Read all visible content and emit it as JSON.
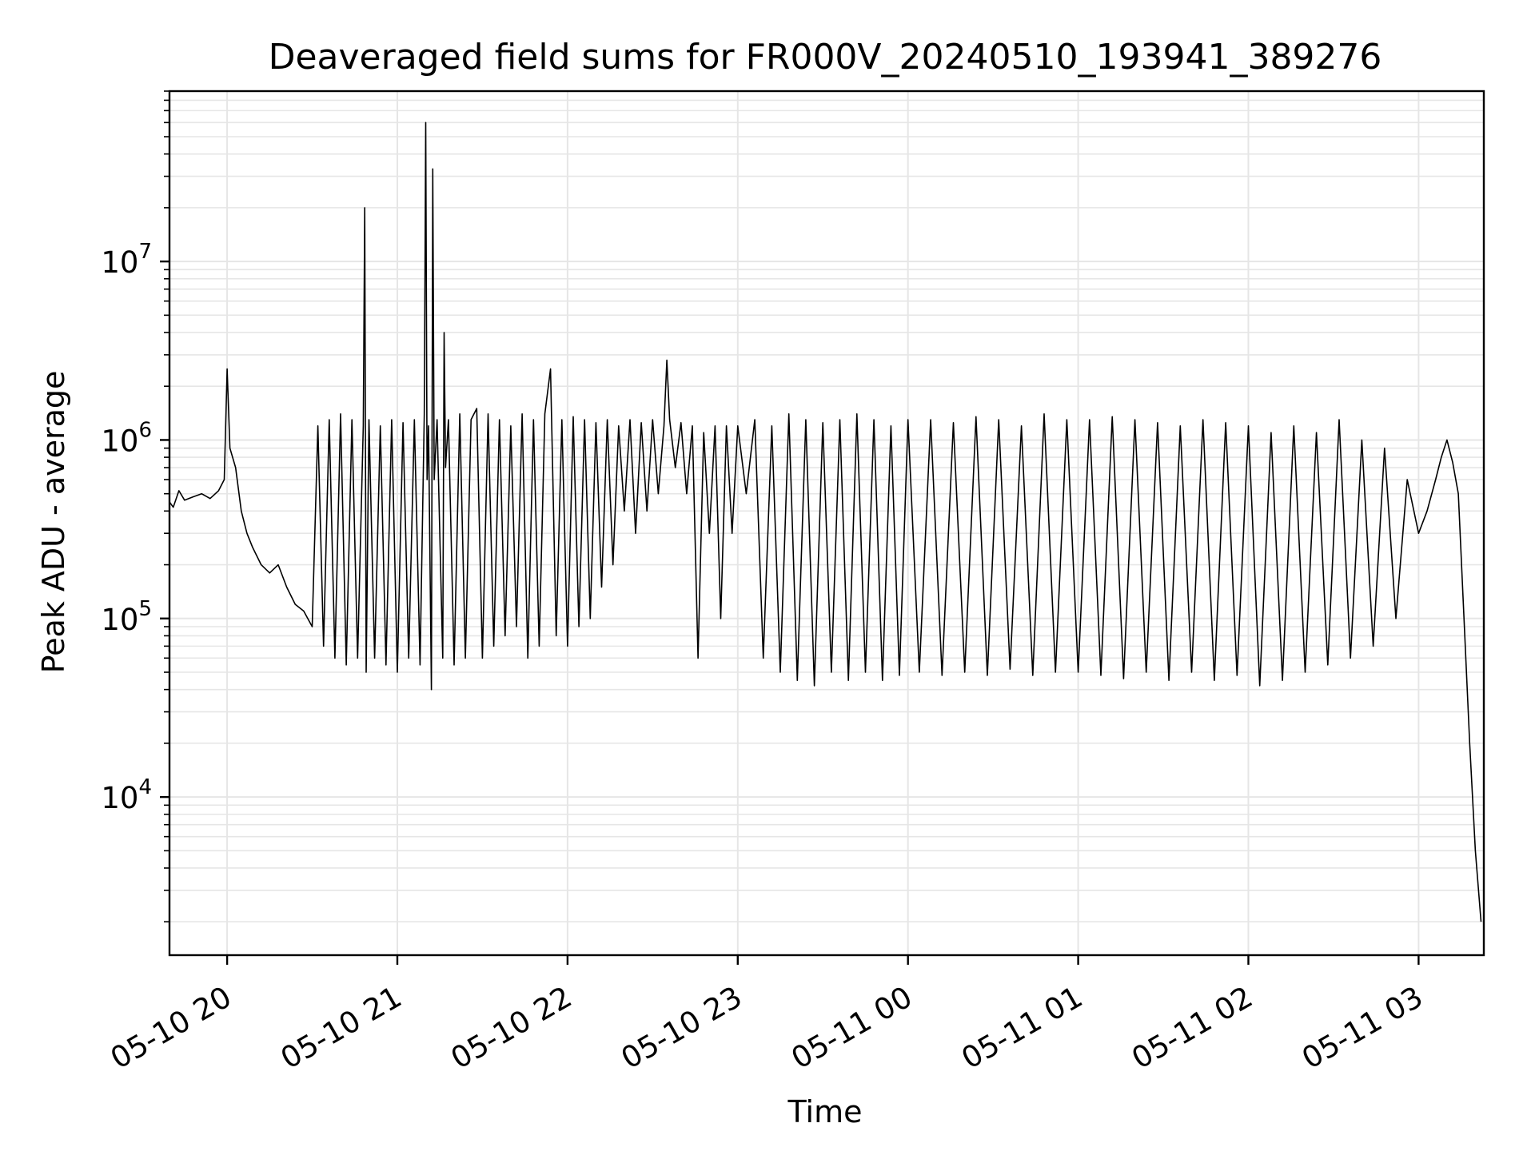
{
  "chart_data": {
    "type": "line",
    "title": "Deaveraged field sums for FR000V_20240510_193941_389276",
    "xlabel": "Time",
    "ylabel": "Peak ADU - average",
    "y_scale": "log",
    "xlim": [
      "2024-05-10 19:39:41",
      "2024-05-11 03:23:00"
    ],
    "ylim": [
      1300,
      90000000
    ],
    "grid": true,
    "x_ticks": [
      {
        "t": "2024-05-10 20:00",
        "label": "05-10 20"
      },
      {
        "t": "2024-05-10 21:00",
        "label": "05-10 21"
      },
      {
        "t": "2024-05-10 22:00",
        "label": "05-10 22"
      },
      {
        "t": "2024-05-10 23:00",
        "label": "05-10 23"
      },
      {
        "t": "2024-05-11 00:00",
        "label": "05-11 00"
      },
      {
        "t": "2024-05-11 01:00",
        "label": "05-11 01"
      },
      {
        "t": "2024-05-11 02:00",
        "label": "05-11 02"
      },
      {
        "t": "2024-05-11 03:00",
        "label": "05-11 03"
      }
    ],
    "y_ticks": [
      {
        "value": 10000,
        "base": "10",
        "exp": "4"
      },
      {
        "value": 100000,
        "base": "10",
        "exp": "5"
      },
      {
        "value": 1000000,
        "base": "10",
        "exp": "6"
      },
      {
        "value": 10000000,
        "base": "10",
        "exp": "7"
      }
    ],
    "line_color": "#000000",
    "grid_color": "#e6e6e6",
    "series": [
      {
        "x": [
          "2024-05-10 19:39:41",
          "2024-05-10 19:41:00",
          "2024-05-10 19:43:00",
          "2024-05-10 19:45:00",
          "2024-05-10 19:48:00",
          "2024-05-10 19:51:00",
          "2024-05-10 19:54:00",
          "2024-05-10 19:57:00",
          "2024-05-10 19:59:00",
          "2024-05-10 20:00:00",
          "2024-05-10 20:01:00",
          "2024-05-10 20:03:00",
          "2024-05-10 20:05:00",
          "2024-05-10 20:07:00",
          "2024-05-10 20:09:00",
          "2024-05-10 20:12:00",
          "2024-05-10 20:15:00",
          "2024-05-10 20:18:00",
          "2024-05-10 20:21:00",
          "2024-05-10 20:24:00",
          "2024-05-10 20:27:00",
          "2024-05-10 20:30:00",
          "2024-05-10 20:32:00",
          "2024-05-10 20:34:00",
          "2024-05-10 20:36:00",
          "2024-05-10 20:38:00",
          "2024-05-10 20:40:00",
          "2024-05-10 20:42:00",
          "2024-05-10 20:44:00",
          "2024-05-10 20:46:00",
          "2024-05-10 20:48:00",
          "2024-05-10 20:48:30",
          "2024-05-10 20:49:00",
          "2024-05-10 20:50:00",
          "2024-05-10 20:52:00",
          "2024-05-10 20:54:00",
          "2024-05-10 20:56:00",
          "2024-05-10 20:58:00",
          "2024-05-10 21:00:00",
          "2024-05-10 21:02:00",
          "2024-05-10 21:04:00",
          "2024-05-10 21:06:00",
          "2024-05-10 21:08:00",
          "2024-05-10 21:09:30",
          "2024-05-10 21:10:00",
          "2024-05-10 21:10:30",
          "2024-05-10 21:11:00",
          "2024-05-10 21:12:00",
          "2024-05-10 21:12:30",
          "2024-05-10 21:13:00",
          "2024-05-10 21:14:00",
          "2024-05-10 21:16:00",
          "2024-05-10 21:16:30",
          "2024-05-10 21:17:00",
          "2024-05-10 21:18:00",
          "2024-05-10 21:20:00",
          "2024-05-10 21:22:00",
          "2024-05-10 21:24:00",
          "2024-05-10 21:26:00",
          "2024-05-10 21:28:00",
          "2024-05-10 21:30:00",
          "2024-05-10 21:32:00",
          "2024-05-10 21:34:00",
          "2024-05-10 21:36:00",
          "2024-05-10 21:38:00",
          "2024-05-10 21:40:00",
          "2024-05-10 21:42:00",
          "2024-05-10 21:44:00",
          "2024-05-10 21:46:00",
          "2024-05-10 21:48:00",
          "2024-05-10 21:50:00",
          "2024-05-10 21:52:00",
          "2024-05-10 21:54:00",
          "2024-05-10 21:56:00",
          "2024-05-10 21:58:00",
          "2024-05-10 22:00:00",
          "2024-05-10 22:02:00",
          "2024-05-10 22:04:00",
          "2024-05-10 22:06:00",
          "2024-05-10 22:08:00",
          "2024-05-10 22:10:00",
          "2024-05-10 22:12:00",
          "2024-05-10 22:14:00",
          "2024-05-10 22:16:00",
          "2024-05-10 22:18:00",
          "2024-05-10 22:20:00",
          "2024-05-10 22:22:00",
          "2024-05-10 22:24:00",
          "2024-05-10 22:26:00",
          "2024-05-10 22:28:00",
          "2024-05-10 22:30:00",
          "2024-05-10 22:32:00",
          "2024-05-10 22:34:00",
          "2024-05-10 22:35:00",
          "2024-05-10 22:36:00",
          "2024-05-10 22:38:00",
          "2024-05-10 22:40:00",
          "2024-05-10 22:42:00",
          "2024-05-10 22:44:00",
          "2024-05-10 22:46:00",
          "2024-05-10 22:48:00",
          "2024-05-10 22:50:00",
          "2024-05-10 22:52:00",
          "2024-05-10 22:54:00",
          "2024-05-10 22:56:00",
          "2024-05-10 22:58:00",
          "2024-05-10 23:00:00",
          "2024-05-10 23:03:00",
          "2024-05-10 23:06:00",
          "2024-05-10 23:09:00",
          "2024-05-10 23:12:00",
          "2024-05-10 23:15:00",
          "2024-05-10 23:18:00",
          "2024-05-10 23:21:00",
          "2024-05-10 23:24:00",
          "2024-05-10 23:27:00",
          "2024-05-10 23:30:00",
          "2024-05-10 23:33:00",
          "2024-05-10 23:36:00",
          "2024-05-10 23:39:00",
          "2024-05-10 23:42:00",
          "2024-05-10 23:45:00",
          "2024-05-10 23:48:00",
          "2024-05-10 23:51:00",
          "2024-05-10 23:54:00",
          "2024-05-10 23:57:00",
          "2024-05-11 00:00:00",
          "2024-05-11 00:04:00",
          "2024-05-11 00:08:00",
          "2024-05-11 00:12:00",
          "2024-05-11 00:16:00",
          "2024-05-11 00:20:00",
          "2024-05-11 00:24:00",
          "2024-05-11 00:28:00",
          "2024-05-11 00:32:00",
          "2024-05-11 00:36:00",
          "2024-05-11 00:40:00",
          "2024-05-11 00:44:00",
          "2024-05-11 00:48:00",
          "2024-05-11 00:52:00",
          "2024-05-11 00:56:00",
          "2024-05-11 01:00:00",
          "2024-05-11 01:04:00",
          "2024-05-11 01:08:00",
          "2024-05-11 01:12:00",
          "2024-05-11 01:16:00",
          "2024-05-11 01:20:00",
          "2024-05-11 01:24:00",
          "2024-05-11 01:28:00",
          "2024-05-11 01:32:00",
          "2024-05-11 01:36:00",
          "2024-05-11 01:40:00",
          "2024-05-11 01:44:00",
          "2024-05-11 01:48:00",
          "2024-05-11 01:52:00",
          "2024-05-11 01:56:00",
          "2024-05-11 02:00:00",
          "2024-05-11 02:04:00",
          "2024-05-11 02:08:00",
          "2024-05-11 02:12:00",
          "2024-05-11 02:16:00",
          "2024-05-11 02:20:00",
          "2024-05-11 02:24:00",
          "2024-05-11 02:28:00",
          "2024-05-11 02:32:00",
          "2024-05-11 02:36:00",
          "2024-05-11 02:40:00",
          "2024-05-11 02:44:00",
          "2024-05-11 02:48:00",
          "2024-05-11 02:52:00",
          "2024-05-11 02:56:00",
          "2024-05-11 03:00:00",
          "2024-05-11 03:03:00",
          "2024-05-11 03:06:00",
          "2024-05-11 03:08:00",
          "2024-05-11 03:10:00",
          "2024-05-11 03:12:00",
          "2024-05-11 03:14:00",
          "2024-05-11 03:16:00",
          "2024-05-11 03:18:00",
          "2024-05-11 03:20:00",
          "2024-05-11 03:22:00"
        ],
        "y": [
          450000,
          420000,
          520000,
          460000,
          480000,
          500000,
          470000,
          520000,
          600000,
          2500000,
          900000,
          700000,
          400000,
          300000,
          250000,
          200000,
          180000,
          200000,
          150000,
          120000,
          110000,
          90000,
          1200000,
          70000,
          1300000,
          60000,
          1400000,
          55000,
          1300000,
          60000,
          1200000,
          20000000,
          50000,
          1300000,
          60000,
          1200000,
          55000,
          1300000,
          50000,
          1250000,
          60000,
          1300000,
          55000,
          1400000,
          60000000,
          600000,
          1200000,
          40000,
          33000000,
          600000,
          1300000,
          60000,
          4000000,
          700000,
          1300000,
          55000,
          1400000,
          60000,
          1300000,
          1500000,
          60000,
          1400000,
          70000,
          1300000,
          80000,
          1200000,
          90000,
          1400000,
          60000,
          1300000,
          70000,
          1400000,
          2500000,
          80000,
          1300000,
          70000,
          1350000,
          90000,
          1300000,
          100000,
          1250000,
          150000,
          1300000,
          200000,
          1200000,
          400000,
          1300000,
          300000,
          1250000,
          400000,
          1300000,
          500000,
          1200000,
          2800000,
          1300000,
          700000,
          1250000,
          500000,
          1200000,
          60000,
          1100000,
          300000,
          1200000,
          100000,
          1200000,
          300000,
          1200000,
          500000,
          1300000,
          60000,
          1200000,
          50000,
          1400000,
          45000,
          1300000,
          42000,
          1250000,
          50000,
          1300000,
          45000,
          1400000,
          50000,
          1300000,
          45000,
          1200000,
          48000,
          1300000,
          50000,
          1300000,
          48000,
          1250000,
          50000,
          1350000,
          48000,
          1300000,
          52000,
          1200000,
          48000,
          1400000,
          50000,
          1300000,
          50000,
          1300000,
          48000,
          1350000,
          46000,
          1300000,
          50000,
          1250000,
          45000,
          1200000,
          50000,
          1300000,
          45000,
          1250000,
          48000,
          1200000,
          42000,
          1100000,
          45000,
          1200000,
          50000,
          1100000,
          55000,
          1300000,
          60000,
          1000000,
          70000,
          900000,
          100000,
          600000,
          300000,
          400000,
          600000,
          800000,
          1000000,
          750000,
          500000,
          100000,
          20000,
          5000,
          2000
        ]
      }
    ]
  }
}
